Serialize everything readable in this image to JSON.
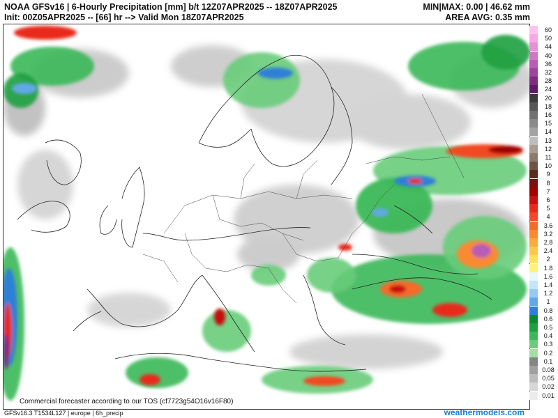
{
  "header": {
    "title_line1": "NOAA GFSv16 | 6-Hourly Precipitation [mm] b/t 12Z07APR2025 -- 18Z07APR2025",
    "title_line2": "Init: 00Z05APR2025 -- [66] hr --> Valid Mon 18Z07APR2025",
    "stats_line1": "MIN|MAX: 0.00 | 46.62 mm",
    "stats_line2": "AREA AVG: 0.35 mm"
  },
  "notice": "Commercial forecaster according to our TOS (cf7723g54O16v16F80)",
  "footer": {
    "left": "GFSv16.3 T1534L127 | europe | 6h_precip",
    "right": "weathermodels.com"
  },
  "legend": [
    {
      "label": "60",
      "color": "#ffc2ec"
    },
    {
      "label": "50",
      "color": "#f7a8e6"
    },
    {
      "label": "44",
      "color": "#e690d8"
    },
    {
      "label": "40",
      "color": "#d276c8"
    },
    {
      "label": "36",
      "color": "#b85cb6"
    },
    {
      "label": "32",
      "color": "#9e449e"
    },
    {
      "label": "28",
      "color": "#7e2c82"
    },
    {
      "label": "24",
      "color": "#5e1a66"
    },
    {
      "label": "20",
      "color": "#3c3c3c"
    },
    {
      "label": "18",
      "color": "#575757"
    },
    {
      "label": "16",
      "color": "#717171"
    },
    {
      "label": "15",
      "color": "#8a8a8a"
    },
    {
      "label": "14",
      "color": "#a3a3a3"
    },
    {
      "label": "13",
      "color": "#bdbdbd"
    },
    {
      "label": "12",
      "color": "#a89c92"
    },
    {
      "label": "11",
      "color": "#8c7a6e"
    },
    {
      "label": "10",
      "color": "#6e5448"
    },
    {
      "label": "9",
      "color": "#5a2a1c"
    },
    {
      "label": "8",
      "color": "#7a1010"
    },
    {
      "label": "7",
      "color": "#a00000"
    },
    {
      "label": "6",
      "color": "#c81010"
    },
    {
      "label": "5",
      "color": "#e82a1a"
    },
    {
      "label": "4",
      "color": "#f24a22"
    },
    {
      "label": "3.6",
      "color": "#f66a2a"
    },
    {
      "label": "3.2",
      "color": "#f98a32"
    },
    {
      "label": "2.8",
      "color": "#fbaa3c"
    },
    {
      "label": "2.4",
      "color": "#fdc84a"
    },
    {
      "label": "2",
      "color": "#fee05c"
    },
    {
      "label": "1.8",
      "color": "#fff27a"
    },
    {
      "label": "1.6",
      "color": "#e8f6ff"
    },
    {
      "label": "1.4",
      "color": "#c4e4fb"
    },
    {
      "label": "1.2",
      "color": "#96caf3"
    },
    {
      "label": "1",
      "color": "#62a8e8"
    },
    {
      "label": "0.8",
      "color": "#2e7fd8"
    },
    {
      "label": "0.6",
      "color": "#0c8a2e"
    },
    {
      "label": "0.5",
      "color": "#1fa040"
    },
    {
      "label": "0.4",
      "color": "#3cb85a"
    },
    {
      "label": "0.3",
      "color": "#68cc7a"
    },
    {
      "label": "0.2",
      "color": "#a2e0a4"
    },
    {
      "label": "0.1",
      "color": "#858585"
    },
    {
      "label": "0.08",
      "color": "#a0a0a0"
    },
    {
      "label": "0.05",
      "color": "#bcbcbc"
    },
    {
      "label": "0.02",
      "color": "#d6d6d6"
    },
    {
      "label": "0.01",
      "color": "#ececec"
    }
  ]
}
